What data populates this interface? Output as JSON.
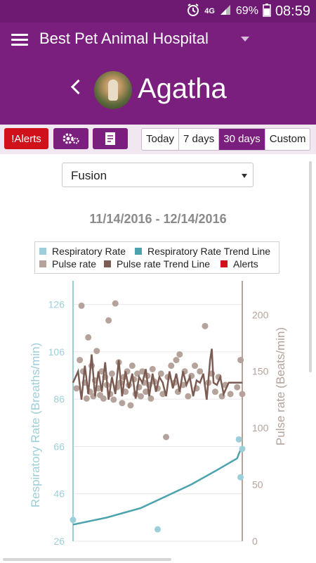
{
  "status_bar": {
    "alarm_icon": "alarm-clock-icon",
    "network": "4G",
    "battery": "69%",
    "time": "08:59"
  },
  "app_bar": {
    "menu_icon": "hamburger-menu-icon",
    "title": "Best Pet Animal Hospital",
    "dropdown_icon": "caret-down-icon"
  },
  "patient": {
    "back_icon": "chevron-left-icon",
    "name": "Agatha"
  },
  "toolbar": {
    "alerts_label": "!Alerts",
    "settings_icon": "gears-icon",
    "notes_icon": "notes-icon",
    "ranges": [
      "Today",
      "7 days",
      "30 days",
      "Custom"
    ],
    "active_range": "30 days"
  },
  "view_select": {
    "value": "Fusion"
  },
  "date_range": "11/14/2016 - 12/14/2016",
  "colors": {
    "brand": "#7b1f7f",
    "alert": "#d0111b",
    "resp": "#9ccfd9",
    "resp_trend": "#4aa3ad",
    "pulse": "#b5a39b",
    "pulse_trend": "#7c5c52"
  },
  "chart_data": {
    "type": "scatter",
    "legend": [
      {
        "label": "Respiratory Rate",
        "color": "#9ccfd9"
      },
      {
        "label": "Respiratory Rate Trend Line",
        "color": "#4aa3ad"
      },
      {
        "label": "Pulse rate",
        "color": "#b5a39b"
      },
      {
        "label": "Pulse rate Trend Line",
        "color": "#7c5c52"
      },
      {
        "label": "Alerts",
        "color": "#d0111b"
      }
    ],
    "ylabel": "Respiratory Rate (Breaths/min)",
    "y2label": "Pulse rate (Beats/min)",
    "ylim": [
      26,
      136
    ],
    "yticks": [
      "126",
      "106",
      "86",
      "66",
      "46",
      "26"
    ],
    "y2lim": [
      0,
      230
    ],
    "y2ticks": [
      "200",
      "150",
      "100",
      "50",
      "0"
    ],
    "respiratory_rate": [
      [
        0.0,
        35
      ],
      [
        0.5,
        31
      ],
      [
        0.98,
        69
      ],
      [
        0.99,
        53
      ],
      [
        1.0,
        65
      ]
    ],
    "respiratory_trend": [
      [
        0.0,
        33
      ],
      [
        0.2,
        36
      ],
      [
        0.4,
        40
      ],
      [
        0.55,
        45
      ],
      [
        0.7,
        50
      ],
      [
        0.85,
        56
      ],
      [
        0.97,
        61
      ],
      [
        0.98,
        63
      ],
      [
        1.0,
        66
      ]
    ],
    "pulse_rate": [
      [
        0.02,
        135
      ],
      [
        0.04,
        160
      ],
      [
        0.05,
        208
      ],
      [
        0.06,
        150
      ],
      [
        0.07,
        140
      ],
      [
        0.08,
        126
      ],
      [
        0.09,
        180
      ],
      [
        0.1,
        132
      ],
      [
        0.11,
        155
      ],
      [
        0.12,
        128
      ],
      [
        0.13,
        142
      ],
      [
        0.14,
        168
      ],
      [
        0.15,
        135
      ],
      [
        0.16,
        129
      ],
      [
        0.17,
        150
      ],
      [
        0.18,
        126
      ],
      [
        0.19,
        145
      ],
      [
        0.2,
        138
      ],
      [
        0.21,
        195
      ],
      [
        0.22,
        130
      ],
      [
        0.23,
        148
      ],
      [
        0.24,
        125
      ],
      [
        0.25,
        210
      ],
      [
        0.26,
        136
      ],
      [
        0.27,
        158
      ],
      [
        0.28,
        140
      ],
      [
        0.29,
        122
      ],
      [
        0.3,
        145
      ],
      [
        0.31,
        132
      ],
      [
        0.32,
        150
      ],
      [
        0.33,
        138
      ],
      [
        0.34,
        120
      ],
      [
        0.35,
        155
      ],
      [
        0.36,
        143
      ],
      [
        0.37,
        130
      ],
      [
        0.38,
        148
      ],
      [
        0.39,
        136
      ],
      [
        0.4,
        128
      ],
      [
        0.41,
        150
      ],
      [
        0.42,
        140
      ],
      [
        0.43,
        132
      ],
      [
        0.44,
        146
      ],
      [
        0.45,
        138
      ],
      [
        0.46,
        126
      ],
      [
        0.47,
        152
      ],
      [
        0.48,
        141
      ],
      [
        0.5,
        135
      ],
      [
        0.52,
        148
      ],
      [
        0.53,
        130
      ],
      [
        0.55,
        92
      ],
      [
        0.56,
        145
      ],
      [
        0.58,
        155
      ],
      [
        0.6,
        140
      ],
      [
        0.61,
        160
      ],
      [
        0.62,
        132
      ],
      [
        0.63,
        165
      ],
      [
        0.65,
        138
      ],
      [
        0.66,
        150
      ],
      [
        0.68,
        128
      ],
      [
        0.7,
        146
      ],
      [
        0.72,
        155
      ],
      [
        0.73,
        135
      ],
      [
        0.75,
        150
      ],
      [
        0.78,
        190
      ],
      [
        0.8,
        140
      ],
      [
        0.82,
        148
      ],
      [
        0.84,
        132
      ],
      [
        0.86,
        145
      ],
      [
        0.88,
        128
      ],
      [
        0.9,
        138
      ],
      [
        0.93,
        130
      ],
      [
        0.97,
        136
      ],
      [
        0.99,
        160
      ],
      [
        1.0,
        130
      ]
    ],
    "pulse_trend": [
      [
        0.0,
        140
      ],
      [
        0.03,
        150
      ],
      [
        0.05,
        125
      ],
      [
        0.07,
        155
      ],
      [
        0.09,
        130
      ],
      [
        0.11,
        165
      ],
      [
        0.13,
        128
      ],
      [
        0.15,
        150
      ],
      [
        0.17,
        132
      ],
      [
        0.19,
        158
      ],
      [
        0.21,
        125
      ],
      [
        0.23,
        145
      ],
      [
        0.25,
        130
      ],
      [
        0.27,
        160
      ],
      [
        0.29,
        128
      ],
      [
        0.31,
        150
      ],
      [
        0.33,
        135
      ],
      [
        0.35,
        148
      ],
      [
        0.37,
        126
      ],
      [
        0.39,
        145
      ],
      [
        0.41,
        140
      ],
      [
        0.43,
        152
      ],
      [
        0.45,
        128
      ],
      [
        0.47,
        148
      ],
      [
        0.49,
        132
      ],
      [
        0.51,
        145
      ],
      [
        0.53,
        140
      ],
      [
        0.55,
        128
      ],
      [
        0.57,
        150
      ],
      [
        0.59,
        135
      ],
      [
        0.61,
        148
      ],
      [
        0.63,
        132
      ],
      [
        0.65,
        150
      ],
      [
        0.67,
        138
      ],
      [
        0.69,
        145
      ],
      [
        0.71,
        128
      ],
      [
        0.73,
        142
      ],
      [
        0.75,
        140
      ],
      [
        0.77,
        148
      ],
      [
        0.79,
        125
      ],
      [
        0.81,
        160
      ],
      [
        0.82,
        170
      ],
      [
        0.83,
        140
      ],
      [
        0.85,
        138
      ],
      [
        0.87,
        145
      ],
      [
        0.89,
        130
      ],
      [
        0.92,
        140
      ],
      [
        0.95,
        140
      ],
      [
        0.98,
        140
      ],
      [
        1.0,
        140
      ]
    ]
  }
}
